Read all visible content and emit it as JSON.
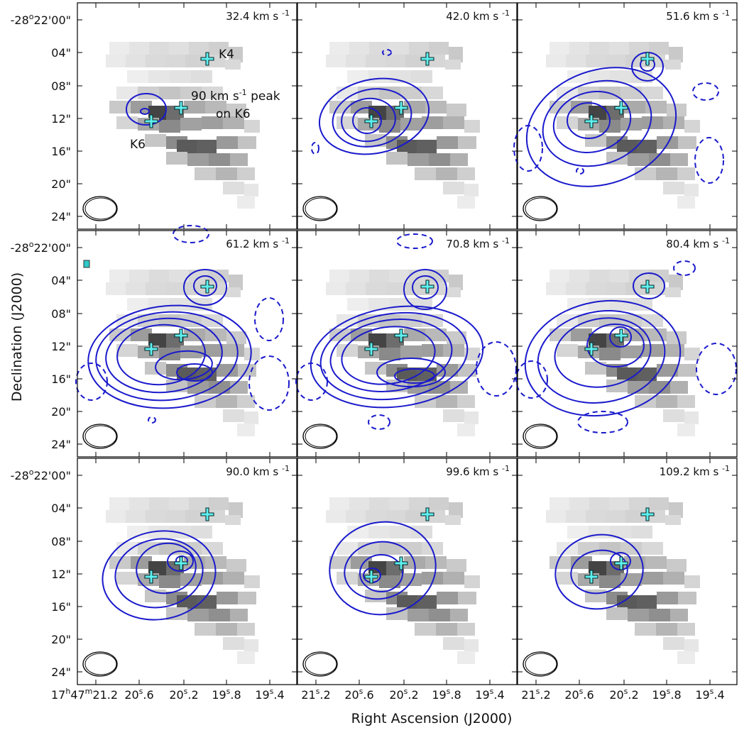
{
  "chart_data": {
    "type": "contour-channel-map",
    "xlabel": "Right Ascension (J2000)",
    "ylabel": "Declination (J2000)",
    "dec_ticks": [
      "-28°22'00\"",
      "04\"",
      "08\"",
      "12\"",
      "16\"",
      "20\"",
      "24\""
    ],
    "dec_ticks_first": {
      "deg": "-28",
      "deg_sup": "o",
      "rest": "22'00\""
    },
    "ra_ticks": [
      {
        "base": "17",
        "h": "h",
        "min": "47",
        "m": "m",
        "sec": "21",
        "s": "s",
        "frac": ".2"
      },
      {
        "base": "21",
        "s": "s",
        "frac": ".2"
      },
      {
        "base": "20",
        "s": "s",
        "frac": ".6"
      },
      {
        "base": "20",
        "s": "s",
        "frac": ".2"
      },
      {
        "base": "19",
        "s": "s",
        "frac": ".8"
      },
      {
        "base": "19",
        "s": "s",
        "frac": ".4"
      }
    ],
    "velocity_unit": "km s",
    "velocity_unit_exp": "-1",
    "channels": [
      {
        "velocity": "32.4",
        "solid_levels": 2,
        "dashed": false
      },
      {
        "velocity": "42.0",
        "solid_levels": 4,
        "dashed": true
      },
      {
        "velocity": "51.6",
        "solid_levels": 5,
        "dashed": true
      },
      {
        "velocity": "61.2",
        "solid_levels": 6,
        "dashed": true
      },
      {
        "velocity": "70.8",
        "solid_levels": 6,
        "dashed": true
      },
      {
        "velocity": "80.4",
        "solid_levels": 5,
        "dashed": true
      },
      {
        "velocity": "90.0",
        "solid_levels": 5,
        "dashed": false
      },
      {
        "velocity": "99.6",
        "solid_levels": 4,
        "dashed": false
      },
      {
        "velocity": "109.2",
        "solid_levels": 3,
        "dashed": false
      }
    ],
    "markers": [
      {
        "name": "K4",
        "ra_offset_arcsec": 3.2,
        "dec_offset_arcsec": -5.8
      },
      {
        "name": "K6",
        "ra_offset_arcsec": -4.5,
        "dec_offset_arcsec": -13.2
      },
      {
        "name": "90 km/s peak on K6",
        "ra_offset_arcsec": -1.5,
        "dec_offset_arcsec": -11.8
      }
    ],
    "annotations": {
      "k4": "K4",
      "k6": "K6",
      "peak_line1_a": "90 km s",
      "peak_line1_exp": "-1",
      "peak_line1_b": " peak",
      "peak_line2": "on K6"
    },
    "colors": {
      "contour": "#1a1acc",
      "marker_fill": "#5ff0f0",
      "marker_edge": "#0a2a2a",
      "frame": "#000000"
    }
  }
}
